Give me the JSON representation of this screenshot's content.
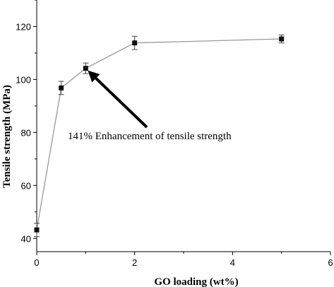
{
  "chart_data": {
    "type": "line",
    "title": "",
    "xlabel": "GO loading (wt%)",
    "ylabel": "Tensile strength (MPa)",
    "xlim": [
      0,
      6
    ],
    "ylim": [
      35,
      130
    ],
    "x_ticks": [
      0,
      2,
      4,
      6
    ],
    "y_ticks": [
      40,
      60,
      80,
      100,
      120
    ],
    "grid": false,
    "series": [
      {
        "x": [
          0,
          0.5,
          1,
          2,
          5
        ],
        "y": [
          43.2,
          96.8,
          104.2,
          113.8,
          115.3
        ],
        "error": [
          2.5,
          2.5,
          2.0,
          2.5,
          1.5
        ],
        "color": "#999999",
        "marker": "square",
        "marker_color": "#111111"
      }
    ],
    "annotation": {
      "text": "141% Enhancement of tensile strength",
      "target": [
        1,
        104.2
      ]
    }
  }
}
